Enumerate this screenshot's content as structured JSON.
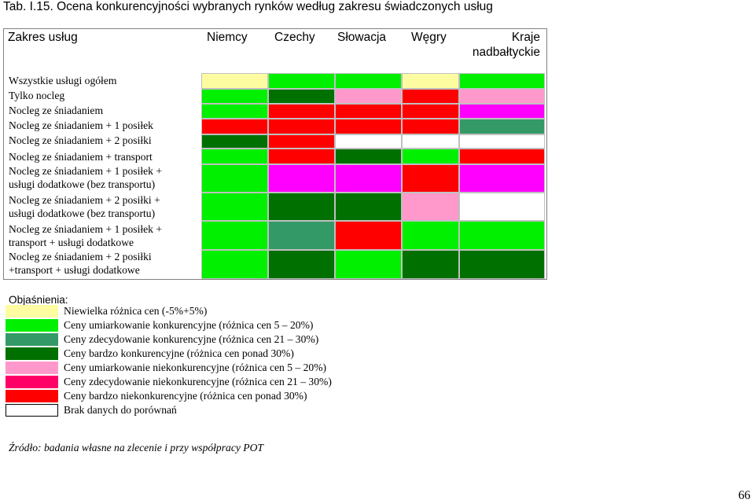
{
  "title": "Tab. I.15. Ocena konkurencyjności wybranych rynków według zakresu świadczonych usług",
  "table": {
    "header_scope": "Zakres usług",
    "countries": [
      "Niemcy",
      "Czechy",
      "Słowacja",
      "Węgry",
      "Kraje\nnadbałtyckie"
    ],
    "rows": [
      {
        "label": "Wszystkie usługi ogółem",
        "cells": [
          "light-yellow",
          "bright-green",
          "bright-green",
          "light-yellow",
          "bright-green"
        ]
      },
      {
        "label": "Tylko nocleg",
        "cells": [
          "bright-green",
          "dark-green",
          "light-pink",
          "red",
          "light-pink"
        ]
      },
      {
        "label": "Nocleg ze śniadaniem",
        "cells": [
          "bright-green",
          "red",
          "red",
          "red",
          "magenta"
        ]
      },
      {
        "label": "Nocleg ze śniadaniem + 1 posiłek",
        "cells": [
          "red",
          "red",
          "red",
          "red",
          "medium-green"
        ]
      },
      {
        "label": "Nocleg ze śniadaniem + 2 posiłki",
        "cells": [
          "dark-green",
          "red",
          "white",
          "white",
          "white"
        ]
      },
      {
        "label": "Nocleg ze śniadaniem + transport",
        "cells": [
          "bright-green",
          "red",
          "dark-green",
          "bright-green",
          "red"
        ]
      },
      {
        "label": "Nocleg ze śniadaniem + 1 posiłek +\nusługi dodatkowe (bez transportu)",
        "cells": [
          "bright-green",
          "magenta",
          "magenta",
          "red",
          "magenta"
        ]
      },
      {
        "label": "Nocleg ze śniadaniem + 2 posiłki +\nusługi dodatkowe (bez transportu)",
        "cells": [
          "bright-green",
          "dark-green",
          "dark-green",
          "light-pink",
          "white"
        ]
      },
      {
        "label": "Nocleg ze śniadaniem + 1 posiłek +\ntransport + usługi dodatkowe",
        "cells": [
          "bright-green",
          "medium-green",
          "red",
          "bright-green",
          "bright-green"
        ]
      },
      {
        "label": "Nocleg ze śniadaniem + 2 posiłki\n+transport + usługi dodatkowe",
        "cells": [
          "bright-green",
          "dark-green",
          "bright-green",
          "dark-green",
          "dark-green"
        ]
      }
    ]
  },
  "legend": {
    "title": "Objaśnienia:",
    "items": [
      {
        "key": "light-yellow",
        "text": "Niewielka różnica cen (-5%+5%)"
      },
      {
        "key": "bright-green",
        "text": "Ceny umiarkowanie konkurencyjne (różnica cen 5 – 20%)"
      },
      {
        "key": "medium-green",
        "text": "Ceny zdecydowanie konkurencyjne (różnica cen 21 – 30%)"
      },
      {
        "key": "dark-green",
        "text": "Ceny bardzo konkurencyjne (różnica cen ponad 30%)"
      },
      {
        "key": "light-pink",
        "text": "Ceny umiarkowanie niekonkurencyjne (różnica cen 5 – 20%)"
      },
      {
        "key": "magenta",
        "text": "Ceny zdecydowanie niekonkurencyjne (różnica cen 21 – 30%)"
      },
      {
        "key": "red",
        "text": "Ceny bardzo niekonkurencyjne (różnica cen ponad 30%)"
      },
      {
        "key": "white",
        "text": "Brak danych do porównań"
      }
    ]
  },
  "colors": {
    "light-yellow": "#fefca0",
    "bright-green": "#00f000",
    "medium-green": "#339966",
    "dark-green": "#007000",
    "light-pink": "#ff99cc",
    "magenta": "#ff00ff",
    "red": "#ff0000",
    "hot-pink": "#ff0066",
    "white": "#ffffff"
  },
  "legend_swatch_colors": [
    "light-yellow",
    "bright-green",
    "medium-green",
    "dark-green",
    "light-pink",
    "hot-pink",
    "red",
    "white"
  ],
  "source": "Źródło: badania własne na  zlecenie i przy współpracy POT",
  "page_number": "66"
}
